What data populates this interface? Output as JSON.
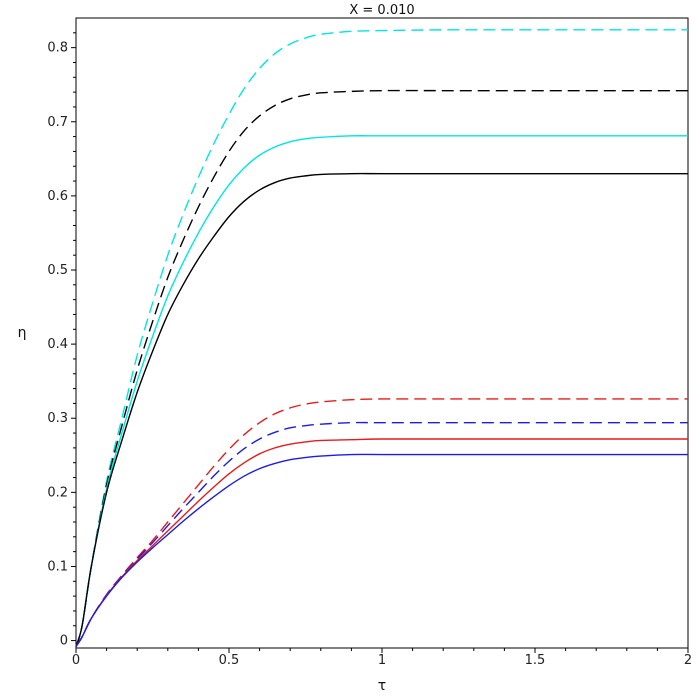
{
  "chart_data": {
    "type": "line",
    "title": "X = 0.010",
    "xlabel": "τ",
    "ylabel": "η",
    "xlim": [
      0,
      2
    ],
    "ylim": [
      -0.01,
      0.84
    ],
    "x_ticks": [
      0,
      0.5,
      1,
      1.5,
      2
    ],
    "x_tick_labels": [
      "0",
      "0.5",
      "1",
      "1.5",
      "2"
    ],
    "y_ticks": [
      0,
      0.1,
      0.2,
      0.3,
      0.4,
      0.5,
      0.6,
      0.7,
      0.8
    ],
    "y_tick_labels": [
      "0",
      "0.1",
      "0.2",
      "0.3",
      "0.4",
      "0.5",
      "0.6",
      "0.7",
      "0.8"
    ],
    "grid": false,
    "series": [
      {
        "color": "#00e5e5",
        "dash": "dashed",
        "x": [
          0,
          0.02,
          0.05,
          0.1,
          0.15,
          0.2,
          0.25,
          0.3,
          0.35,
          0.4,
          0.45,
          0.5,
          0.55,
          0.6,
          0.65,
          0.7,
          0.75,
          0.8,
          0.9,
          1.0,
          1.2,
          1.5,
          2.0
        ],
        "y": [
          -0.008,
          0.02,
          0.1,
          0.215,
          0.3,
          0.385,
          0.455,
          0.52,
          0.575,
          0.625,
          0.67,
          0.71,
          0.745,
          0.772,
          0.792,
          0.805,
          0.813,
          0.818,
          0.822,
          0.823,
          0.824,
          0.824,
          0.824
        ]
      },
      {
        "color": "#000000",
        "dash": "dashed",
        "x": [
          0,
          0.02,
          0.05,
          0.1,
          0.15,
          0.2,
          0.25,
          0.3,
          0.35,
          0.4,
          0.45,
          0.5,
          0.55,
          0.6,
          0.65,
          0.7,
          0.75,
          0.8,
          0.9,
          1.0,
          1.2,
          1.5,
          2.0
        ],
        "y": [
          -0.008,
          0.02,
          0.1,
          0.21,
          0.29,
          0.365,
          0.43,
          0.49,
          0.54,
          0.585,
          0.625,
          0.66,
          0.688,
          0.708,
          0.722,
          0.731,
          0.736,
          0.739,
          0.741,
          0.742,
          0.742,
          0.742,
          0.742
        ]
      },
      {
        "color": "#00e5e5",
        "dash": "solid",
        "x": [
          0,
          0.02,
          0.05,
          0.1,
          0.15,
          0.2,
          0.25,
          0.3,
          0.35,
          0.4,
          0.45,
          0.5,
          0.55,
          0.6,
          0.65,
          0.7,
          0.75,
          0.8,
          0.9,
          1.0,
          1.2,
          1.5,
          2.0
        ],
        "y": [
          -0.008,
          0.02,
          0.1,
          0.205,
          0.28,
          0.35,
          0.41,
          0.465,
          0.51,
          0.55,
          0.585,
          0.615,
          0.638,
          0.655,
          0.666,
          0.673,
          0.677,
          0.679,
          0.681,
          0.681,
          0.681,
          0.681,
          0.681
        ]
      },
      {
        "color": "#000000",
        "dash": "solid",
        "x": [
          0,
          0.02,
          0.05,
          0.1,
          0.15,
          0.2,
          0.25,
          0.3,
          0.35,
          0.4,
          0.45,
          0.5,
          0.55,
          0.6,
          0.65,
          0.7,
          0.75,
          0.8,
          0.9,
          1.0,
          1.2,
          1.5,
          2.0
        ],
        "y": [
          -0.008,
          0.02,
          0.1,
          0.2,
          0.27,
          0.335,
          0.39,
          0.44,
          0.48,
          0.515,
          0.545,
          0.572,
          0.593,
          0.608,
          0.618,
          0.624,
          0.627,
          0.629,
          0.63,
          0.63,
          0.63,
          0.63,
          0.63
        ]
      },
      {
        "color": "#e51c1c",
        "dash": "dashed",
        "x": [
          0,
          0.02,
          0.05,
          0.1,
          0.15,
          0.2,
          0.25,
          0.3,
          0.35,
          0.4,
          0.45,
          0.5,
          0.55,
          0.6,
          0.65,
          0.7,
          0.75,
          0.8,
          0.9,
          1.0,
          1.2,
          1.5,
          2.0
        ],
        "y": [
          -0.008,
          0.005,
          0.03,
          0.062,
          0.088,
          0.112,
          0.135,
          0.16,
          0.185,
          0.21,
          0.235,
          0.258,
          0.278,
          0.294,
          0.306,
          0.314,
          0.319,
          0.322,
          0.325,
          0.326,
          0.326,
          0.326,
          0.326
        ]
      },
      {
        "color": "#1c1ce5",
        "dash": "dashed",
        "x": [
          0,
          0.02,
          0.05,
          0.1,
          0.15,
          0.2,
          0.25,
          0.3,
          0.35,
          0.4,
          0.45,
          0.5,
          0.55,
          0.6,
          0.65,
          0.7,
          0.75,
          0.8,
          0.9,
          1.0,
          1.2,
          1.5,
          2.0
        ],
        "y": [
          -0.008,
          0.005,
          0.03,
          0.062,
          0.087,
          0.11,
          0.132,
          0.155,
          0.178,
          0.2,
          0.222,
          0.242,
          0.259,
          0.272,
          0.281,
          0.287,
          0.29,
          0.292,
          0.294,
          0.294,
          0.294,
          0.294,
          0.294
        ]
      },
      {
        "color": "#e51c1c",
        "dash": "solid",
        "x": [
          0,
          0.02,
          0.05,
          0.1,
          0.15,
          0.2,
          0.25,
          0.3,
          0.35,
          0.4,
          0.45,
          0.5,
          0.55,
          0.6,
          0.65,
          0.7,
          0.75,
          0.8,
          0.9,
          1.0,
          1.2,
          1.5,
          2.0
        ],
        "y": [
          -0.008,
          0.005,
          0.03,
          0.061,
          0.086,
          0.108,
          0.128,
          0.148,
          0.168,
          0.188,
          0.207,
          0.225,
          0.24,
          0.252,
          0.26,
          0.265,
          0.268,
          0.27,
          0.271,
          0.272,
          0.272,
          0.272,
          0.272
        ]
      },
      {
        "color": "#1c1ce5",
        "dash": "solid",
        "x": [
          0,
          0.02,
          0.05,
          0.1,
          0.15,
          0.2,
          0.25,
          0.3,
          0.35,
          0.4,
          0.45,
          0.5,
          0.55,
          0.6,
          0.65,
          0.7,
          0.75,
          0.8,
          0.9,
          1.0,
          1.2,
          1.5,
          2.0
        ],
        "y": [
          -0.008,
          0.005,
          0.03,
          0.06,
          0.085,
          0.106,
          0.125,
          0.143,
          0.161,
          0.178,
          0.194,
          0.209,
          0.222,
          0.232,
          0.239,
          0.244,
          0.247,
          0.249,
          0.251,
          0.251,
          0.251,
          0.251,
          0.251
        ]
      }
    ]
  }
}
